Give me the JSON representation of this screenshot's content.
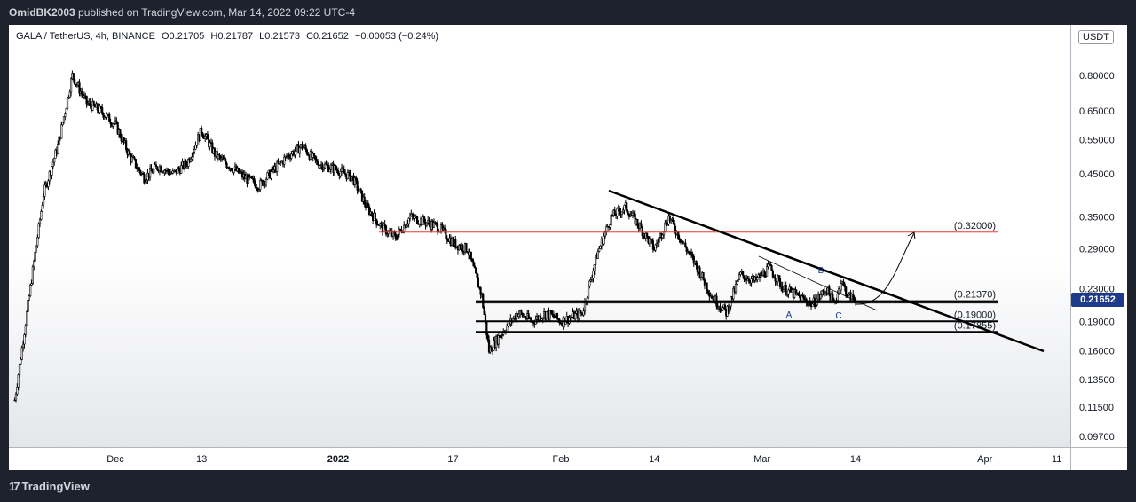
{
  "header": {
    "publisher": "OmidBK2003",
    "publish_text": "published on TradingView.com, Mar 14, 2022 09:22 UTC-4"
  },
  "symbol": {
    "name": "GALA / TetherUS, 4h, BINANCE",
    "open": "O0.21705",
    "high": "H0.21787",
    "low": "L0.21573",
    "close": "C0.21652",
    "change": "−0.00053 (−0.24%)"
  },
  "unit_button": "USDT",
  "last_price": "0.21652",
  "footer": {
    "brand": "TradingView",
    "glyph": "17"
  },
  "colors": {
    "background": "#1e222d",
    "resistance": "#e53935",
    "lines": "#000000",
    "last_price_bg": "#1e3a8a"
  },
  "chart_data": {
    "type": "candlestick",
    "scale": "log",
    "price_ticks": [
      0.8,
      0.65,
      0.55,
      0.45,
      0.35,
      0.29,
      0.23,
      0.19,
      0.16,
      0.135,
      0.115,
      0.097
    ],
    "price_tick_labels": [
      "0.80000",
      "0.65000",
      "0.55000",
      "0.45000",
      "0.35000",
      "0.29000",
      "0.23000",
      "0.19000",
      "0.16000",
      "0.13500",
      "0.11500",
      "0.09700"
    ],
    "time_ticks": [
      "Dec",
      "13",
      "2022",
      "17",
      "Feb",
      "14",
      "Mar",
      "14",
      "Apr",
      "11"
    ],
    "price_path": [
      [
        "2021-11-17",
        0.12
      ],
      [
        "2021-11-19",
        0.22
      ],
      [
        "2021-11-21",
        0.4
      ],
      [
        "2021-11-23",
        0.53
      ],
      [
        "2021-11-25",
        0.8
      ],
      [
        "2021-11-27",
        0.68
      ],
      [
        "2021-11-29",
        0.65
      ],
      [
        "2021-12-01",
        0.6
      ],
      [
        "2021-12-03",
        0.5
      ],
      [
        "2021-12-05",
        0.44
      ],
      [
        "2021-12-07",
        0.47
      ],
      [
        "2021-12-09",
        0.45
      ],
      [
        "2021-12-11",
        0.48
      ],
      [
        "2021-12-13",
        0.58
      ],
      [
        "2021-12-15",
        0.5
      ],
      [
        "2021-12-17",
        0.47
      ],
      [
        "2021-12-19",
        0.44
      ],
      [
        "2021-12-21",
        0.42
      ],
      [
        "2021-12-23",
        0.46
      ],
      [
        "2021-12-25",
        0.5
      ],
      [
        "2021-12-27",
        0.53
      ],
      [
        "2021-12-29",
        0.48
      ],
      [
        "2022-01-01",
        0.46
      ],
      [
        "2022-01-03",
        0.44
      ],
      [
        "2022-01-05",
        0.37
      ],
      [
        "2022-01-07",
        0.33
      ],
      [
        "2022-01-09",
        0.31
      ],
      [
        "2022-01-11",
        0.35
      ],
      [
        "2022-01-13",
        0.34
      ],
      [
        "2022-01-15",
        0.33
      ],
      [
        "2022-01-17",
        0.3
      ],
      [
        "2022-01-19",
        0.29
      ],
      [
        "2022-01-21",
        0.22
      ],
      [
        "2022-01-22",
        0.16
      ],
      [
        "2022-01-24",
        0.18
      ],
      [
        "2022-01-26",
        0.2
      ],
      [
        "2022-01-28",
        0.19
      ],
      [
        "2022-01-30",
        0.2
      ],
      [
        "2022-02-01",
        0.19
      ],
      [
        "2022-02-04",
        0.2
      ],
      [
        "2022-02-06",
        0.28
      ],
      [
        "2022-02-08",
        0.35
      ],
      [
        "2022-02-10",
        0.37
      ],
      [
        "2022-02-12",
        0.33
      ],
      [
        "2022-02-14",
        0.29
      ],
      [
        "2022-02-16",
        0.35
      ],
      [
        "2022-02-18",
        0.3
      ],
      [
        "2022-02-20",
        0.26
      ],
      [
        "2022-02-22",
        0.22
      ],
      [
        "2022-02-24",
        0.2
      ],
      [
        "2022-02-26",
        0.25
      ],
      [
        "2022-02-28",
        0.24
      ],
      [
        "2022-03-02",
        0.26
      ],
      [
        "2022-03-04",
        0.23
      ],
      [
        "2022-03-06",
        0.22
      ],
      [
        "2022-03-08",
        0.21
      ],
      [
        "2022-03-10",
        0.23
      ],
      [
        "2022-03-11",
        0.21
      ],
      [
        "2022-03-12",
        0.24
      ],
      [
        "2022-03-13",
        0.22
      ],
      [
        "2022-03-14",
        0.2165
      ]
    ],
    "levels": [
      {
        "price": 0.32,
        "label": "(0.32000)",
        "color": "#e53935"
      },
      {
        "price": 0.2137,
        "label": "(0.21370)",
        "color": "#000000"
      },
      {
        "price": 0.19,
        "label": "(0.19000)",
        "color": "#000000"
      },
      {
        "price": 0.17855,
        "label": "(0.17855)",
        "color": "#000000"
      }
    ],
    "annotations": [
      "A",
      "B",
      "C"
    ]
  }
}
